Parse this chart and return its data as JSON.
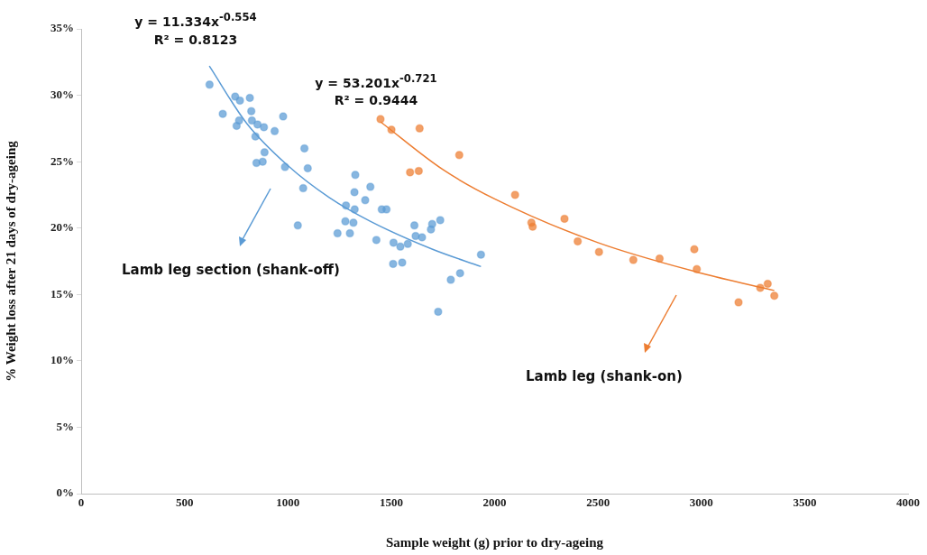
{
  "chart_data": {
    "type": "scatter",
    "xlabel": "Sample weight (g) prior to dry-ageing",
    "ylabel": "% Weight loss after 21 days of dry-ageing",
    "xlim": [
      0,
      4000
    ],
    "xticks": [
      0,
      500,
      1000,
      1500,
      2000,
      2500,
      3000,
      3500,
      4000
    ],
    "ylim": [
      0,
      35
    ],
    "yticks": [
      {
        "value": 0,
        "label": "0%"
      },
      {
        "value": 5,
        "label": "5%"
      },
      {
        "value": 10,
        "label": "10%"
      },
      {
        "value": 15,
        "label": "15%"
      },
      {
        "value": 20,
        "label": "20%"
      },
      {
        "value": 25,
        "label": "25%"
      },
      {
        "value": 30,
        "label": "30%"
      },
      {
        "value": 35,
        "label": "35%"
      }
    ],
    "grid": false,
    "legend": "bottom",
    "marker": "circle",
    "series": [
      {
        "name": "Lamb leg section (shank-off)",
        "color": "#5b9bd5",
        "x": [
          621,
          745,
          768,
          816,
          685,
          823,
          764,
          752,
          826,
          853,
          884,
          977,
          936,
          843,
          887,
          848,
          878,
          986,
          1080,
          1096,
          1074,
          1048,
          1326,
          1322,
          1399,
          1374,
          1281,
          1323,
          1454,
          1477,
          1278,
          1317,
          1240,
          1300,
          1428,
          1511,
          1544,
          1580,
          1612,
          1618,
          1649,
          1692,
          1698,
          1737,
          1509,
          1553,
          1934,
          1833,
          1788,
          1727
        ],
        "values": [
          30.8,
          29.9,
          29.6,
          29.8,
          28.6,
          28.8,
          28.1,
          27.7,
          28.1,
          27.8,
          27.6,
          28.4,
          27.3,
          26.9,
          25.7,
          24.9,
          25.0,
          24.6,
          26.0,
          24.5,
          23.0,
          20.2,
          24.0,
          22.7,
          23.1,
          22.1,
          21.7,
          21.4,
          21.4,
          21.4,
          20.5,
          20.4,
          19.6,
          19.6,
          19.1,
          18.9,
          18.6,
          18.8,
          20.2,
          19.4,
          19.3,
          19.9,
          20.3,
          20.6,
          17.3,
          17.4,
          18.0,
          16.6,
          16.1,
          13.7
        ]
      },
      {
        "name": "Lamb leg (shank-on)",
        "color": "#ed7d31",
        "x": [
          1448,
          1501,
          1637,
          1829,
          1591,
          1633,
          2099,
          2178,
          2184,
          2338,
          2402,
          2505,
          2671,
          2798,
          2966,
          2978,
          3180,
          3285,
          3321,
          3353
        ],
        "values": [
          28.2,
          27.4,
          27.5,
          25.5,
          24.2,
          24.3,
          22.5,
          20.4,
          20.1,
          20.7,
          19.0,
          18.2,
          17.6,
          17.7,
          18.4,
          16.9,
          14.4,
          15.5,
          15.8,
          14.9
        ]
      },
      {
        "type": "line",
        "color": "#5b9bd5",
        "marker": "none",
        "x": [
          620,
          800,
          1000,
          1200,
          1400,
          1700,
          1934
        ],
        "values": [
          32.2,
          27.9,
          24.7,
          22.3,
          20.5,
          18.4,
          17.1
        ]
      },
      {
        "type": "line",
        "color": "#ed7d31",
        "marker": "none",
        "x": [
          1448,
          1750,
          2000,
          2500,
          3000,
          3353
        ],
        "values": [
          28.0,
          24.4,
          22.2,
          18.9,
          16.6,
          15.3
        ]
      }
    ],
    "annotations": [
      "y = 11.334x$^{-0.554}$",
      "R² = 0.8123",
      "y = 53.201x$^{-0.721}$",
      "R² = 0.9444"
    ]
  }
}
